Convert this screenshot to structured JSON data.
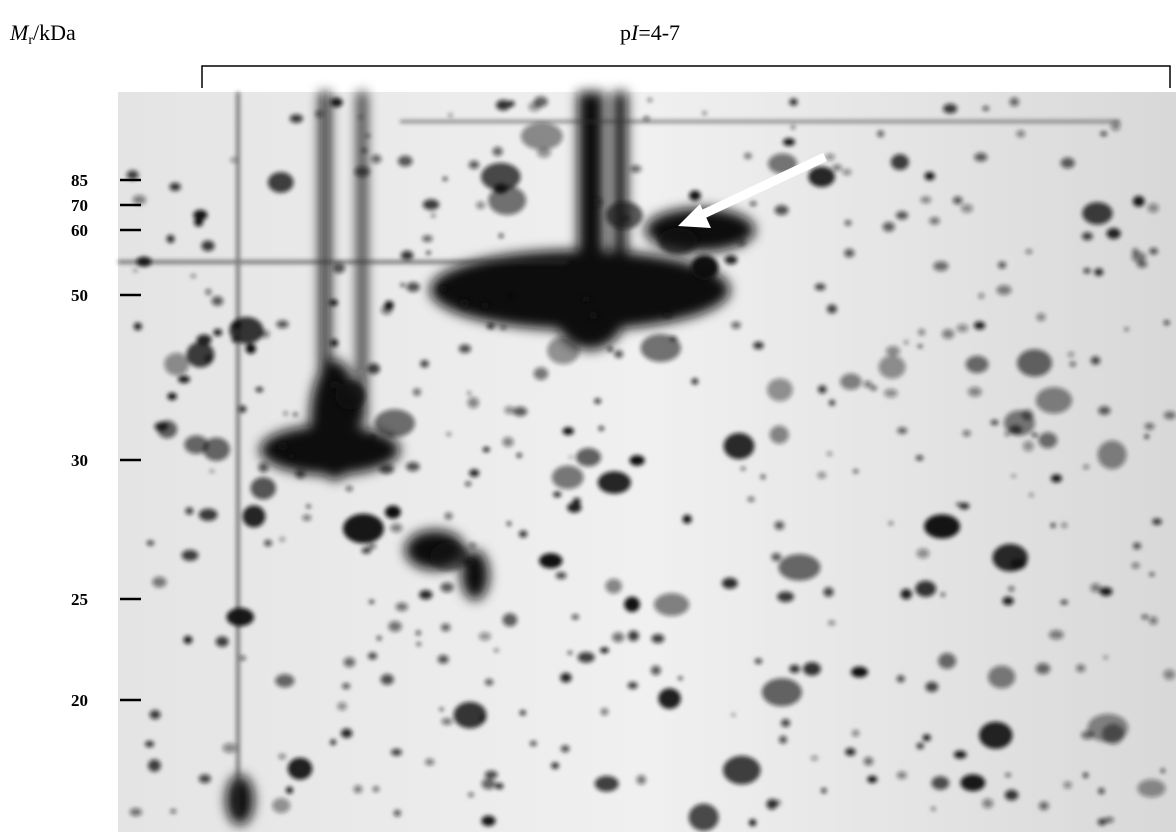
{
  "axis_label": {
    "main": "M",
    "subscript": "r",
    "unit": "/kDa"
  },
  "title": {
    "prefix": "p",
    "italic": "I",
    "rest": "=4-7"
  },
  "markers": [
    85,
    70,
    60,
    50,
    30,
    25,
    20
  ]
}
